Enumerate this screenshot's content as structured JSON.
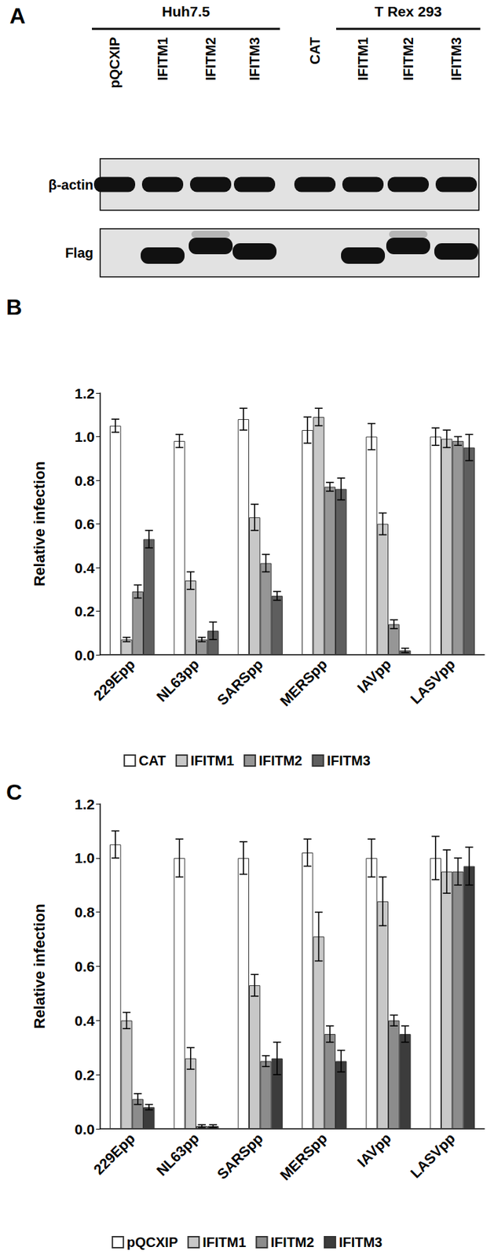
{
  "panel_a": {
    "label": "A",
    "blots": [
      "β-actin",
      "Flag"
    ],
    "groups": [
      {
        "name": "Huh7.5",
        "lanes": [
          "pQCXIP",
          "IFITM1",
          "IFITM2",
          "IFITM3"
        ],
        "flag_band": [
          false,
          true,
          true,
          true
        ]
      },
      {
        "name": "T Rex 293",
        "lanes": [
          "CAT",
          "IFITM1",
          "IFITM2",
          "IFITM3"
        ],
        "flag_band": [
          false,
          true,
          true,
          true
        ]
      }
    ]
  },
  "chart_data": [
    {
      "type": "bar",
      "title": "B",
      "y_label": "Relative infection",
      "categories": [
        "229Epp",
        "NL63pp",
        "SARSpp",
        "MERSpp",
        "IAVpp",
        "LASVpp"
      ],
      "series": [
        {
          "name": "CAT",
          "color": "#ffffff",
          "values": [
            1.05,
            0.98,
            1.08,
            1.03,
            1.0,
            1.0
          ],
          "errors": [
            0.03,
            0.03,
            0.05,
            0.06,
            0.06,
            0.04
          ]
        },
        {
          "name": "IFITM1",
          "color": "#c8c8c8",
          "values": [
            0.07,
            0.34,
            0.63,
            1.09,
            0.6,
            0.99
          ],
          "errors": [
            0.01,
            0.04,
            0.06,
            0.04,
            0.05,
            0.04
          ]
        },
        {
          "name": "IFITM2",
          "color": "#969696",
          "values": [
            0.29,
            0.07,
            0.42,
            0.77,
            0.14,
            0.98
          ],
          "errors": [
            0.03,
            0.01,
            0.04,
            0.02,
            0.02,
            0.02
          ]
        },
        {
          "name": "IFITM3",
          "color": "#5e5e5e",
          "values": [
            0.53,
            0.11,
            0.27,
            0.76,
            0.02,
            0.95
          ],
          "errors": [
            0.04,
            0.04,
            0.02,
            0.05,
            0.01,
            0.06
          ]
        }
      ],
      "ylim": [
        0,
        1.2
      ],
      "yticks": [
        {
          "value": 0,
          "label": "0.0"
        },
        {
          "value": 0.2,
          "label": "0.2"
        },
        {
          "value": 0.4,
          "label": "0.4"
        },
        {
          "value": 0.6,
          "label": "0.6"
        },
        {
          "value": 0.8,
          "label": "0.8"
        },
        {
          "value": 1,
          "label": "1.0"
        },
        {
          "value": 1.2,
          "label": "1.2"
        }
      ],
      "grid": false,
      "legend": "bottom"
    },
    {
      "type": "bar",
      "title": "C",
      "y_label": "Relative infection",
      "categories": [
        "229Epp",
        "NL63pp",
        "SARSpp",
        "MERSpp",
        "IAVpp",
        "LASVpp"
      ],
      "series": [
        {
          "name": "pQCXIP",
          "color": "#ffffff",
          "values": [
            1.05,
            1.0,
            1.0,
            1.02,
            1.0,
            1.0
          ],
          "errors": [
            0.05,
            0.07,
            0.06,
            0.05,
            0.07,
            0.08
          ]
        },
        {
          "name": "IFITM1",
          "color": "#c8c8c8",
          "values": [
            0.4,
            0.26,
            0.53,
            0.71,
            0.84,
            0.95
          ],
          "errors": [
            0.03,
            0.04,
            0.04,
            0.09,
            0.09,
            0.08
          ]
        },
        {
          "name": "IFITM2",
          "color": "#8c8c8c",
          "values": [
            0.11,
            0.01,
            0.25,
            0.35,
            0.4,
            0.95
          ],
          "errors": [
            0.02,
            0.005,
            0.02,
            0.03,
            0.02,
            0.05
          ]
        },
        {
          "name": "IFITM3",
          "color": "#3c3c3c",
          "values": [
            0.08,
            0.01,
            0.26,
            0.25,
            0.35,
            0.97
          ],
          "errors": [
            0.01,
            0.005,
            0.06,
            0.04,
            0.03,
            0.07
          ]
        }
      ],
      "ylim": [
        0,
        1.2
      ],
      "yticks": [
        {
          "value": 0,
          "label": "0.0"
        },
        {
          "value": 0.2,
          "label": "0.2"
        },
        {
          "value": 0.4,
          "label": "0.4"
        },
        {
          "value": 0.6,
          "label": "0.6"
        },
        {
          "value": 0.8,
          "label": "0.8"
        },
        {
          "value": 1,
          "label": "1.0"
        },
        {
          "value": 1.2,
          "label": "1.2"
        }
      ],
      "grid": false,
      "legend": "bottom"
    }
  ]
}
